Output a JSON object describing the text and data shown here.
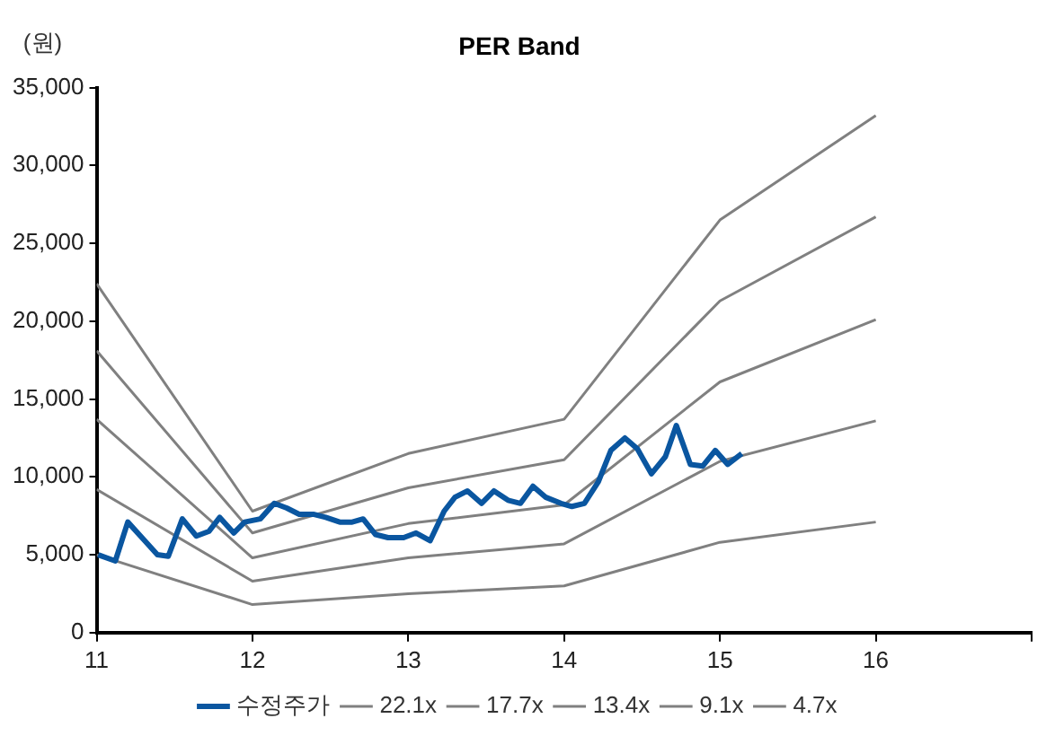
{
  "chart_data": {
    "type": "line",
    "title": "PER Band",
    "ylabel": "(원)",
    "xlim": [
      11,
      17
    ],
    "xticks": [
      11,
      12,
      13,
      14,
      15,
      16,
      {
        "value": 17,
        "label": null
      }
    ],
    "ylim": [
      0,
      35000
    ],
    "yticks": [
      0,
      {
        "value": 5000,
        "label": "5,000"
      },
      {
        "value": 10000,
        "label": "10,000"
      },
      {
        "value": 15000,
        "label": "15,000"
      },
      {
        "value": 20000,
        "label": "20,000"
      },
      {
        "value": 25000,
        "label": "25,000"
      },
      {
        "value": 30000,
        "label": "30,000"
      },
      {
        "value": 35000,
        "label": "35,000"
      }
    ],
    "grid": false,
    "legend": "bottom",
    "marker": "none",
    "series": [
      {
        "name": "수정주가",
        "color": "#0a56a0",
        "x": [
          11.01,
          11.12,
          11.2,
          11.3,
          11.39,
          11.46,
          11.55,
          11.64,
          11.72,
          11.79,
          11.88,
          11.95,
          12.05,
          12.14,
          12.22,
          12.3,
          12.39,
          12.47,
          12.56,
          12.64,
          12.71,
          12.79,
          12.87,
          12.97,
          13.05,
          13.14,
          13.23,
          13.3,
          13.38,
          13.47,
          13.55,
          13.64,
          13.72,
          13.8,
          13.88,
          13.98,
          14.05,
          14.13,
          14.22,
          14.3,
          14.39,
          14.47,
          14.56,
          14.65,
          14.72,
          14.81,
          14.89,
          14.97,
          15.05,
          15.14
        ],
        "values": [
          5000,
          4600,
          7100,
          6000,
          5000,
          4900,
          7300,
          6200,
          6500,
          7400,
          6400,
          7100,
          7300,
          8300,
          8000,
          7600,
          7600,
          7400,
          7100,
          7100,
          7300,
          6300,
          6100,
          6100,
          6400,
          5900,
          7800,
          8700,
          9100,
          8300,
          9100,
          8500,
          8300,
          9400,
          8700,
          8300,
          8100,
          8300,
          9700,
          11700,
          12500,
          11800,
          10200,
          11300,
          13300,
          10800,
          10700,
          11700,
          10800,
          11500
        ]
      },
      {
        "name": "22.1x",
        "color": "#808080",
        "x": [
          11,
          12,
          13,
          14,
          15,
          16
        ],
        "values": [
          22400,
          7800,
          11500,
          13700,
          26500,
          33200
        ]
      },
      {
        "name": "17.7x",
        "color": "#808080",
        "x": [
          11,
          12,
          13,
          14,
          15,
          16
        ],
        "values": [
          18100,
          6400,
          9300,
          11100,
          21300,
          26700
        ]
      },
      {
        "name": "13.4x",
        "color": "#808080",
        "x": [
          11,
          12,
          13,
          14,
          15,
          16
        ],
        "values": [
          13700,
          4800,
          7000,
          8200,
          16100,
          20100
        ]
      },
      {
        "name": "9.1x",
        "color": "#808080",
        "x": [
          11,
          12,
          13,
          14,
          15,
          16
        ],
        "values": [
          9200,
          3300,
          4800,
          5700,
          11000,
          13600
        ]
      },
      {
        "name": "4.7x",
        "color": "#808080",
        "x": [
          11,
          12,
          13,
          14,
          15,
          16
        ],
        "values": [
          5000,
          1800,
          2500,
          3000,
          5800,
          7100
        ]
      }
    ]
  }
}
